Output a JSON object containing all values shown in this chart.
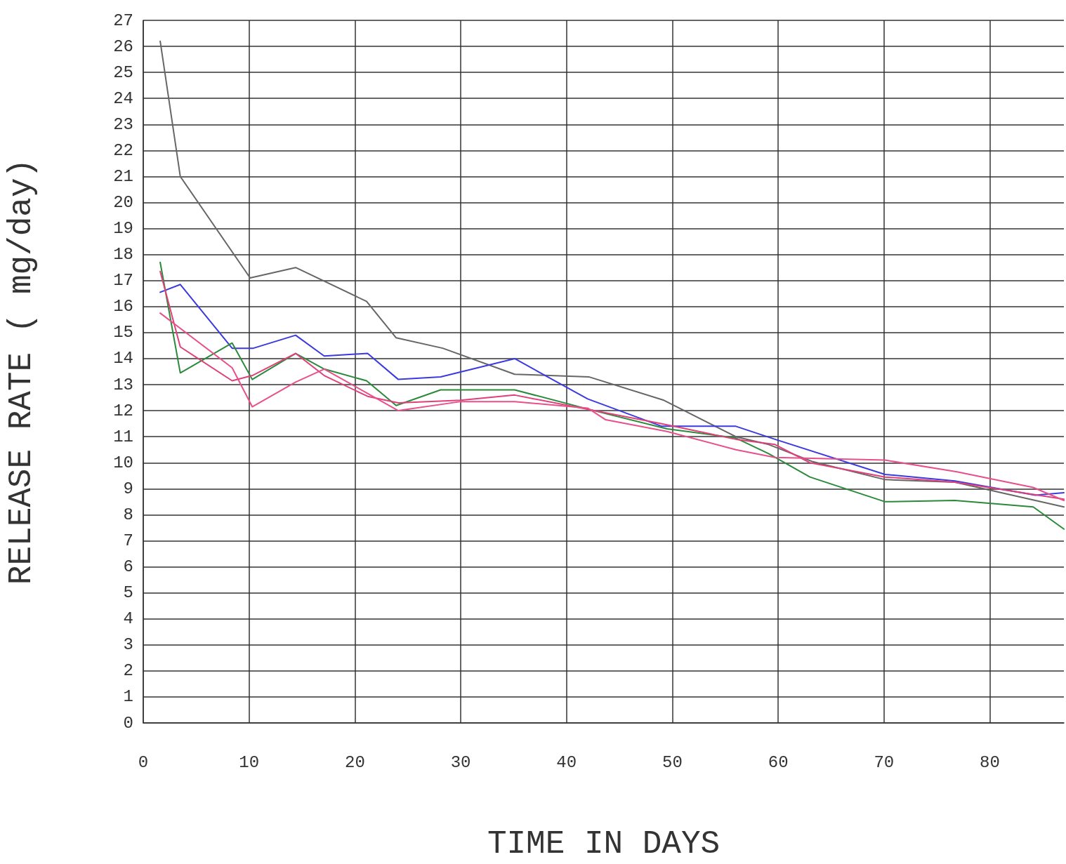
{
  "chart_data": {
    "type": "line",
    "xlabel": "TIME IN DAYS",
    "ylabel": "RELEASE RATE ( mg/day)",
    "xlim": [
      0,
      87
    ],
    "xticks": [
      0,
      10,
      20,
      30,
      40,
      50,
      60,
      70,
      80
    ],
    "ylim": [
      0,
      27
    ],
    "yticks": [
      0,
      1,
      2,
      3,
      4,
      5,
      6,
      7,
      8,
      9,
      10,
      11,
      12,
      13,
      14,
      15,
      16,
      17,
      18,
      19,
      20,
      21,
      22,
      23,
      24,
      25,
      26,
      27
    ],
    "grid": true,
    "marker": "none",
    "line_style": "solid",
    "series": [
      {
        "color": "#666666",
        "x": [
          1.6,
          3.5,
          10.1,
          14.4,
          21.1,
          23.9,
          28.3,
          35.1,
          42.1,
          49.2,
          56,
          59.1,
          63.2,
          70.1,
          76.7,
          87
        ],
        "values": [
          26.2,
          21.0,
          17.1,
          17.5,
          16.2,
          14.8,
          14.4,
          13.4,
          13.3,
          12.4,
          11.0,
          10.7,
          10.05,
          9.35,
          9.25,
          8.3
        ]
      },
      {
        "color": "#3a3ae0",
        "x": [
          1.6,
          3.5,
          8.4,
          10.4,
          14.4,
          17.1,
          21.2,
          24.1,
          28.1,
          35.1,
          42,
          49,
          56,
          59.7,
          70.1,
          76.7,
          84.3,
          87
        ],
        "values": [
          16.55,
          16.85,
          14.4,
          14.4,
          14.9,
          14.1,
          14.2,
          13.2,
          13.3,
          14.0,
          12.45,
          11.4,
          11.4,
          10.9,
          9.55,
          9.3,
          8.75,
          8.85
        ]
      },
      {
        "color": "#2a8a3a",
        "x": [
          1.6,
          3.5,
          8.4,
          10.3,
          14.4,
          17.1,
          21.1,
          23.9,
          28.1,
          35.1,
          42.6,
          49.5,
          56,
          59.1,
          63,
          70.1,
          76.7,
          84.1,
          87
        ],
        "values": [
          17.7,
          13.45,
          14.6,
          13.2,
          14.2,
          13.6,
          13.15,
          12.2,
          12.8,
          12.8,
          12.0,
          11.3,
          10.95,
          10.35,
          9.45,
          8.5,
          8.55,
          8.3,
          7.45
        ]
      },
      {
        "color": "#e0407a",
        "x": [
          1.6,
          3.5,
          8.4,
          10.3,
          14.4,
          17.1,
          21.2,
          24.1,
          30,
          35.1,
          49,
          56,
          59.7,
          63,
          70.1,
          76.7,
          87
        ],
        "values": [
          17.35,
          14.45,
          13.15,
          13.35,
          14.2,
          13.35,
          12.55,
          12.3,
          12.4,
          12.6,
          11.5,
          10.9,
          10.7,
          10.0,
          9.45,
          9.25,
          8.6
        ]
      },
      {
        "color": "#e8508a",
        "x": [
          1.6,
          8.4,
          10.3,
          14.4,
          17.1,
          24.1,
          30,
          35.1,
          42,
          43.7,
          49.5,
          56,
          59.7,
          70.1,
          76.9,
          84.1,
          87
        ],
        "values": [
          15.75,
          13.65,
          12.15,
          13.1,
          13.6,
          12.0,
          12.35,
          12.35,
          12.1,
          11.65,
          11.2,
          10.5,
          10.2,
          10.1,
          9.65,
          9.05,
          8.55
        ]
      }
    ]
  }
}
